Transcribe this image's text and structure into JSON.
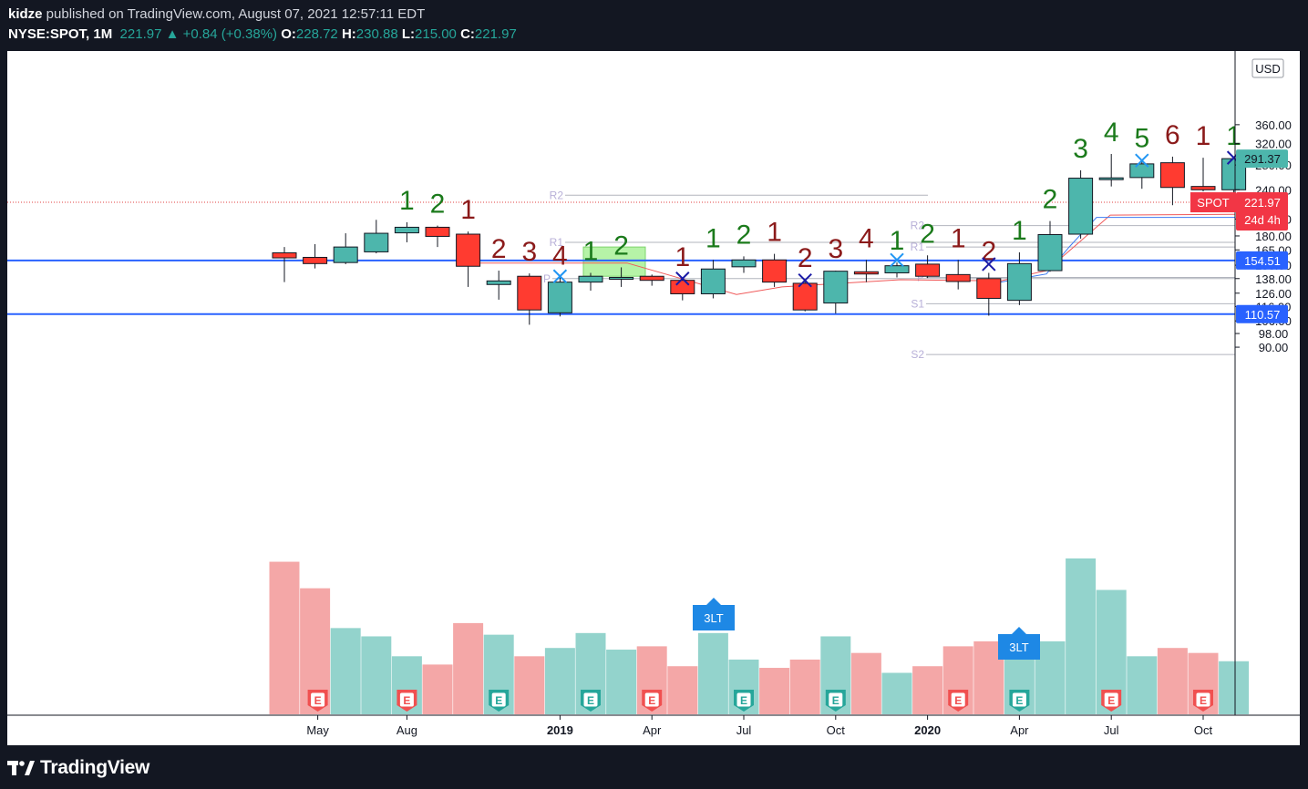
{
  "header": {
    "publisher": "kidze",
    "published_text": " published on TradingView.com, August 07, 2021 12:57:11 EDT",
    "symbol": "NYSE:SPOT, 1M",
    "last": "221.97",
    "change": "+0.84 (+0.38%)",
    "open_label": "O:",
    "open": "228.72",
    "high_label": "H:",
    "high": "230.88",
    "low_label": "L:",
    "low": "215.00",
    "close_label": "C:",
    "close": "221.97"
  },
  "footer": {
    "brand": "TradingView"
  },
  "colors": {
    "up": "#4db6ac",
    "down": "#ff3b30",
    "up_volume": "#93d3cc",
    "down_volume": "#f4a7a7",
    "hline": "#2962ff",
    "count_up": "#1b7a1b",
    "count_down": "#8b1a1a",
    "background": "#ffffff",
    "chrome": "#131722"
  },
  "chart_data": {
    "type": "candlestick",
    "currency": "USD",
    "y_ticks": [
      90,
      98,
      106,
      116,
      126,
      138,
      150,
      165,
      180,
      200,
      240,
      280,
      320,
      360
    ],
    "x_labels": [
      "May",
      "Aug",
      "2019",
      "Apr",
      "Jul",
      "Oct",
      "2020",
      "Apr",
      "Jul",
      "Oct"
    ],
    "candles": [
      {
        "date": "2018-04",
        "o": 162.0,
        "h": 168.0,
        "l": 135.0,
        "c": 157.0,
        "vol": 0.92,
        "count": ""
      },
      {
        "date": "2018-05",
        "o": 157.5,
        "h": 171.0,
        "l": 147.0,
        "c": 151.5,
        "vol": 0.76,
        "count": ""
      },
      {
        "date": "2018-06",
        "o": 152.5,
        "h": 183.0,
        "l": 151.0,
        "c": 168.0,
        "vol": 0.52,
        "count": ""
      },
      {
        "date": "2018-07",
        "o": 163.0,
        "h": 199.0,
        "l": 161.5,
        "c": 183.0,
        "vol": 0.47,
        "count": ""
      },
      {
        "date": "2018-08",
        "o": 183.5,
        "h": 196.0,
        "l": 173.0,
        "c": 190.0,
        "vol": 0.35,
        "count": "1"
      },
      {
        "date": "2018-09",
        "o": 190.0,
        "h": 192.0,
        "l": 168.0,
        "c": 179.5,
        "vol": 0.3,
        "count": "2"
      },
      {
        "date": "2018-10",
        "o": 182.0,
        "h": 185.0,
        "l": 131.0,
        "c": 149.0,
        "vol": 0.55,
        "count": "1"
      },
      {
        "date": "2018-11",
        "o": 133.0,
        "h": 145.0,
        "l": 121.0,
        "c": 136.0,
        "vol": 0.48,
        "count": "2"
      },
      {
        "date": "2018-12",
        "o": 140.0,
        "h": 142.5,
        "l": 103.5,
        "c": 113.5,
        "vol": 0.35,
        "count": "3"
      },
      {
        "date": "2019-01",
        "o": 111.5,
        "h": 139.0,
        "l": 109.0,
        "c": 135.0,
        "vol": 0.4,
        "count": "4"
      },
      {
        "date": "2019-02",
        "o": 135.0,
        "h": 143.0,
        "l": 128.0,
        "c": 140.0,
        "vol": 0.49,
        "count": "1"
      },
      {
        "date": "2019-03",
        "o": 138.5,
        "h": 148.0,
        "l": 131.0,
        "c": 139.0,
        "vol": 0.39,
        "count": "2"
      },
      {
        "date": "2019-04",
        "o": 140.0,
        "h": 141.5,
        "l": 132.0,
        "c": 136.5,
        "vol": 0.41,
        "count": ""
      },
      {
        "date": "2019-05",
        "o": 136.5,
        "h": 138.0,
        "l": 120.5,
        "c": 125.5,
        "vol": 0.29,
        "count": "1"
      },
      {
        "date": "2019-06",
        "o": 125.5,
        "h": 155.0,
        "l": 122.0,
        "c": 146.5,
        "vol": 0.49,
        "count": "1"
      },
      {
        "date": "2019-07",
        "o": 148.5,
        "h": 158.5,
        "l": 143.0,
        "c": 155.0,
        "vol": 0.33,
        "count": "2"
      },
      {
        "date": "2019-08",
        "o": 155.0,
        "h": 161.0,
        "l": 131.0,
        "c": 135.0,
        "vol": 0.28,
        "count": "1"
      },
      {
        "date": "2019-09",
        "o": 134.0,
        "h": 137.0,
        "l": 112.5,
        "c": 113.5,
        "vol": 0.33,
        "count": "2"
      },
      {
        "date": "2019-10",
        "o": 118.5,
        "h": 145.0,
        "l": 111.0,
        "c": 144.5,
        "vol": 0.47,
        "count": "3"
      },
      {
        "date": "2019-11",
        "o": 144.0,
        "h": 155.0,
        "l": 135.0,
        "c": 142.0,
        "vol": 0.37,
        "count": "4"
      },
      {
        "date": "2019-12",
        "o": 143.0,
        "h": 152.5,
        "l": 139.0,
        "c": 149.5,
        "vol": 0.25,
        "count": "1"
      },
      {
        "date": "2020-01",
        "o": 151.0,
        "h": 159.5,
        "l": 138.5,
        "c": 140.0,
        "vol": 0.29,
        "count": "2"
      },
      {
        "date": "2020-02",
        "o": 141.5,
        "h": 155.0,
        "l": 129.0,
        "c": 135.5,
        "vol": 0.41,
        "count": "1"
      },
      {
        "date": "2020-03",
        "o": 138.0,
        "h": 143.0,
        "l": 109.5,
        "c": 122.0,
        "vol": 0.44,
        "count": "2"
      },
      {
        "date": "2020-04",
        "o": 120.5,
        "h": 162.5,
        "l": 117.0,
        "c": 151.5,
        "vol": 0.34,
        "count": "1"
      },
      {
        "date": "2020-05",
        "o": 145.0,
        "h": 197.5,
        "l": 144.0,
        "c": 181.5,
        "vol": 0.44,
        "count": "2"
      },
      {
        "date": "2020-06",
        "o": 182.0,
        "h": 271.0,
        "l": 177.0,
        "c": 258.0,
        "vol": 0.94,
        "count": "3"
      },
      {
        "date": "2020-07",
        "o": 256.5,
        "h": 300.0,
        "l": 245.0,
        "c": 258.5,
        "vol": 0.75,
        "count": "4"
      },
      {
        "date": "2020-08",
        "o": 259.0,
        "h": 289.5,
        "l": 241.5,
        "c": 282.0,
        "vol": 0.35,
        "count": "5"
      },
      {
        "date": "2020-09",
        "o": 284.0,
        "h": 295.0,
        "l": 218.0,
        "c": 243.5,
        "vol": 0.4,
        "count": "6"
      },
      {
        "date": "2020-10",
        "o": 245.0,
        "h": 293.0,
        "l": 237.5,
        "c": 240.0,
        "vol": 0.37,
        "count": "1"
      },
      {
        "date": "2020-11",
        "o": 240.0,
        "h": 293.5,
        "l": 234.0,
        "c": 291.37,
        "vol": 0.32,
        "count": "1"
      }
    ],
    "horizontal_lines": [
      {
        "value": 154.51,
        "label": "154.51"
      },
      {
        "value": 110.57,
        "label": "110.57"
      }
    ],
    "price_label": {
      "value": 221.97,
      "name": "SPOT",
      "price": "221.97",
      "countdown": "24d 4h"
    },
    "current_label": {
      "value": 291.37,
      "text": "291.37"
    },
    "pivot_labels": [
      "R2",
      "R1",
      "P",
      "R2",
      "R1",
      "P",
      "S1",
      "S2"
    ],
    "markers": [
      "3LT",
      "3LT"
    ],
    "earnings_marker": "E"
  }
}
